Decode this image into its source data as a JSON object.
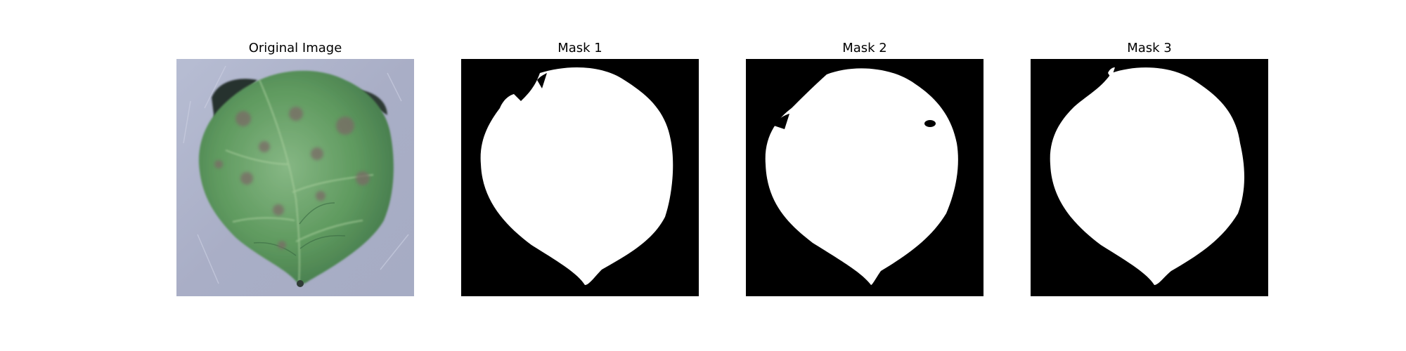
{
  "figure": {
    "panels": [
      {
        "title": "Original Image",
        "kind": "photo",
        "subject": "leaf-icon"
      },
      {
        "title": "Mask 1",
        "kind": "mask"
      },
      {
        "title": "Mask 2",
        "kind": "mask"
      },
      {
        "title": "Mask 3",
        "kind": "mask"
      }
    ]
  },
  "colors": {
    "background": "#ffffff",
    "mask_background": "#000000",
    "mask_foreground": "#ffffff",
    "photo_background": "#a9aec6",
    "leaf_green": "#5f9a5f",
    "leaf_dark": "#3a6a43",
    "leaf_spot": "#7a6a66",
    "leaf_shadow": "#27332f"
  }
}
